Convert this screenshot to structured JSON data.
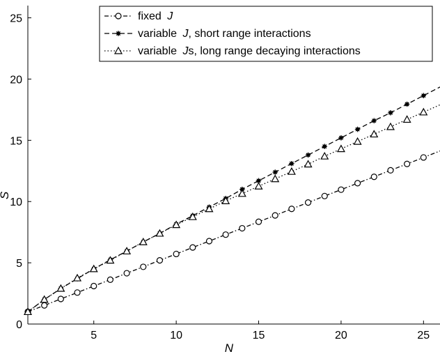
{
  "chart_data": {
    "type": "line",
    "xlabel": "N",
    "ylabel": "S",
    "xlim": [
      1,
      26
    ],
    "ylim": [
      0,
      26
    ],
    "xticks": [
      5,
      10,
      15,
      20,
      25
    ],
    "yticks": [
      0,
      5,
      10,
      15,
      20,
      25
    ],
    "grid": false,
    "legend_position": "top-right",
    "x": [
      1,
      2,
      3,
      4,
      5,
      6,
      7,
      8,
      9,
      10,
      11,
      12,
      13,
      14,
      15,
      16,
      17,
      18,
      19,
      20,
      21,
      22,
      23,
      24,
      25
    ],
    "series": [
      {
        "name": "fixed J",
        "legend": {
          "pre": "fixed ",
          "j": "J",
          "post": ""
        },
        "marker": "circle",
        "line": "dash-dot",
        "color": "#000000",
        "values": [
          1.0,
          1.52,
          2.05,
          2.57,
          3.1,
          3.62,
          4.15,
          4.67,
          5.2,
          5.72,
          6.25,
          6.77,
          7.3,
          7.82,
          8.35,
          8.87,
          9.4,
          9.92,
          10.45,
          10.97,
          11.5,
          12.02,
          12.55,
          13.07,
          13.6
        ]
      },
      {
        "name": "variable J, short range interactions",
        "legend": {
          "pre": "variable ",
          "j": "J",
          "post": ", short range interactions"
        },
        "marker": "star",
        "line": "dashed",
        "color": "#000000",
        "values": [
          1.0,
          2.0,
          2.9,
          3.7,
          4.5,
          5.25,
          5.95,
          6.7,
          7.4,
          8.15,
          8.85,
          9.55,
          10.25,
          11.0,
          11.7,
          12.4,
          13.1,
          13.8,
          14.5,
          15.2,
          15.9,
          16.6,
          17.25,
          17.95,
          18.65
        ]
      },
      {
        "name": "variable J's, long range decaying interactions",
        "legend": {
          "pre": "variable ",
          "j": "J",
          "post": "s, long range decaying interactions"
        },
        "marker": "triangle",
        "line": "dotted",
        "color": "#000000",
        "values": [
          1.0,
          2.0,
          2.9,
          3.75,
          4.5,
          5.2,
          5.95,
          6.7,
          7.4,
          8.1,
          8.75,
          9.4,
          10.05,
          10.65,
          11.25,
          11.85,
          12.45,
          13.05,
          13.7,
          14.3,
          14.9,
          15.5,
          16.1,
          16.7,
          17.3
        ]
      }
    ]
  }
}
